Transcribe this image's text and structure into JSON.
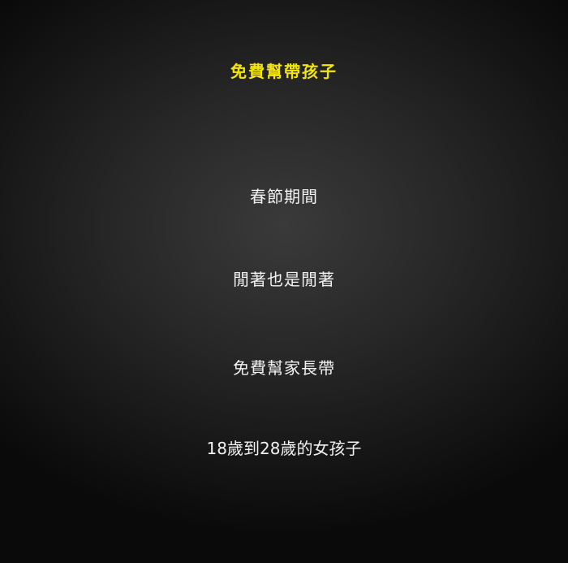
{
  "colors": {
    "title": "#f5e600",
    "body_text": "#f2f2f2",
    "background": "#1c1c1c"
  },
  "poster": {
    "title": "免費幫帶孩子",
    "lines": [
      "春節期間",
      "閒著也是閒著",
      "免費幫家長帶",
      "18歲到28歲的女孩子"
    ]
  }
}
